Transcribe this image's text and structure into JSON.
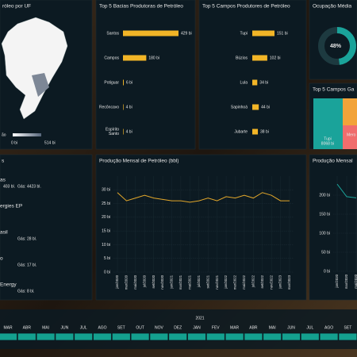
{
  "map": {
    "title": "róleo por UF",
    "legend_min": "0 bi",
    "legend_max": "514 bi",
    "caption": "ão"
  },
  "chart_data": [
    {
      "type": "hbar",
      "title": "Top 5 Bacias Produtoras de Petróleo",
      "categories": [
        "Santos",
        "Campos",
        "Potiguar",
        "Recôncavo",
        "Espírito Santo"
      ],
      "values": [
        429,
        180,
        6,
        4,
        4
      ],
      "value_labels": [
        "429 bi",
        "180 bi",
        "6 bi",
        "4 bi",
        "4 bi"
      ],
      "color": "#f2b527"
    },
    {
      "type": "hbar",
      "title": "Top 5 Campos Produtores de Petróleo",
      "categories": [
        "Tupi",
        "Búzios",
        "Lula",
        "Sapinhoá",
        "Jubarte"
      ],
      "values": [
        151,
        102,
        34,
        44,
        38
      ],
      "value_labels": [
        "151 bi",
        "102 bi",
        "34 bi",
        "44 bi",
        "38 bi"
      ],
      "color": "#f2b527"
    },
    {
      "type": "donut",
      "title": "Ocupação Média",
      "value": 48,
      "value_label": "48%",
      "color": "#1aa39a"
    },
    {
      "type": "treemap",
      "title": "Top 5 Campos Ga",
      "items": [
        {
          "name": "Tupi",
          "value": 8068,
          "label": "8068 bi"
        },
        {
          "name": "Mero"
        }
      ],
      "color": "#1aa39a"
    },
    {
      "type": "line",
      "title": "Produção Mensal de Petróleo (bbl)",
      "color": "#e3a72a",
      "categories": [
        "jan/2020",
        "mar/2020",
        "mai/2020",
        "jul/2020",
        "set/2020",
        "nov/2020",
        "jan/2021",
        "mar/2021",
        "mai/2021",
        "jul/2021",
        "set/2021",
        "nov/2021",
        "jan/2022",
        "mar/2022",
        "mai/2022",
        "jul/2022",
        "set/2022",
        "nov/2022",
        "jan/2023",
        "mar/2023"
      ],
      "values": [
        29,
        26,
        27,
        28,
        27,
        26.5,
        26,
        26,
        25.5,
        26,
        27,
        26,
        27.5,
        27,
        28,
        27,
        29,
        28,
        26,
        26
      ],
      "ylim": [
        0,
        35
      ],
      "yticks": [
        {
          "value": 0,
          "label": "0 bi"
        },
        {
          "value": 5,
          "label": "5 bi"
        },
        {
          "value": 10,
          "label": "10 bi"
        },
        {
          "value": 15,
          "label": "15 bi"
        },
        {
          "value": 20,
          "label": "20 bi"
        },
        {
          "value": 25,
          "label": "25 bi"
        },
        {
          "value": 30,
          "label": "30 bi"
        }
      ],
      "grid": true
    },
    {
      "type": "line",
      "title": "Produção Mensal",
      "color": "#1aa39a",
      "categories": [
        "jan/2020",
        "mar/2020",
        "mai/2020"
      ],
      "values": [
        229,
        196,
        193
      ],
      "ylim": [
        0,
        250
      ],
      "yticks": [
        {
          "value": 0,
          "label": "0 bi"
        },
        {
          "value": 50,
          "label": "50 bi"
        },
        {
          "value": 100,
          "label": "100 bi"
        },
        {
          "value": 150,
          "label": "150 bi"
        },
        {
          "value": 200,
          "label": "200 bi"
        }
      ],
      "grid": true
    }
  ],
  "companies": {
    "title": "s",
    "items": [
      {
        "name": "as",
        "detail": "403 bl.",
        "gas": "Gás: 4423 bl."
      },
      {
        "name": "ergies EP"
      },
      {
        "name": "asil",
        "gas": "Gás: 28 bl."
      },
      {
        "name": "o",
        "gas": "Gás: 17 bl."
      },
      {
        "name": "Energy",
        "gas": "Gás: 8 bl."
      }
    ]
  },
  "timeline": {
    "year": "2021",
    "months": [
      "MAR",
      "ABR",
      "MAI",
      "JUN",
      "JUL",
      "AGO",
      "SET",
      "OUT",
      "NOV",
      "DEZ",
      "JAN",
      "FEV",
      "MAR",
      "ABR",
      "MAI",
      "JUN",
      "JUL",
      "AGO",
      "SET"
    ]
  }
}
